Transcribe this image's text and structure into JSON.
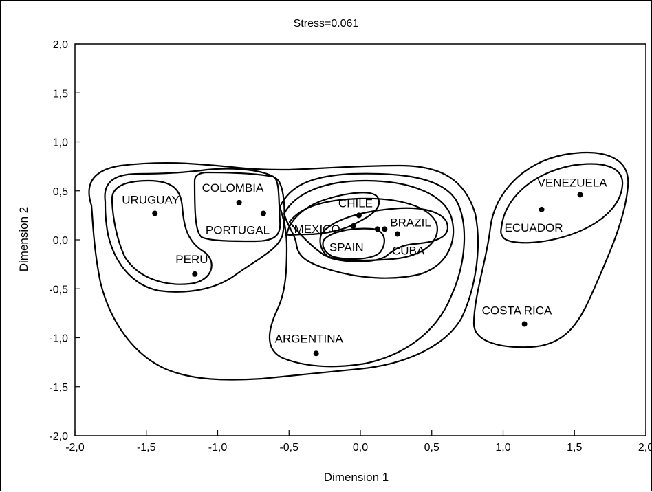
{
  "chart_data": {
    "type": "scatter",
    "title": "Stress=0.061",
    "xlabel": "Dimension 1",
    "ylabel": "Dimension 2",
    "xlim": [
      -2.0,
      2.0
    ],
    "ylim": [
      -2.0,
      2.0
    ],
    "x_ticks": [
      "-2,0",
      "-1,5",
      "-1,0",
      "-0,5",
      "0,0",
      "0,5",
      "1,0",
      "1,5",
      "2,0"
    ],
    "y_ticks": [
      "2,0",
      "1,5",
      "1,0",
      "0,5",
      "0,0",
      "-0,5",
      "-1,0",
      "-1,5",
      "-2,0"
    ],
    "grid": false,
    "points": [
      {
        "label": "URUGUAY",
        "x": -1.44,
        "y": 0.27
      },
      {
        "label": "COLOMBIA",
        "x": -0.85,
        "y": 0.38
      },
      {
        "label": "PORTUGAL",
        "x": -0.68,
        "y": 0.27
      },
      {
        "label": "PERU",
        "x": -1.16,
        "y": -0.35
      },
      {
        "label": "CHILE",
        "x": -0.01,
        "y": 0.25
      },
      {
        "label": "MEXICO",
        "x": -0.05,
        "y": 0.14
      },
      {
        "label": "BRAZIL",
        "x": 0.17,
        "y": 0.11
      },
      {
        "label": "SPAIN",
        "x": 0.12,
        "y": 0.11
      },
      {
        "label": "CUBA",
        "x": 0.26,
        "y": 0.06
      },
      {
        "label": "ARGENTINA",
        "x": -0.31,
        "y": -1.16
      },
      {
        "label": "VENEZUELA",
        "x": 1.54,
        "y": 0.46
      },
      {
        "label": "ECUADOR",
        "x": 1.27,
        "y": 0.31
      },
      {
        "label": "COSTA RICA",
        "x": 1.15,
        "y": -0.86
      }
    ]
  }
}
